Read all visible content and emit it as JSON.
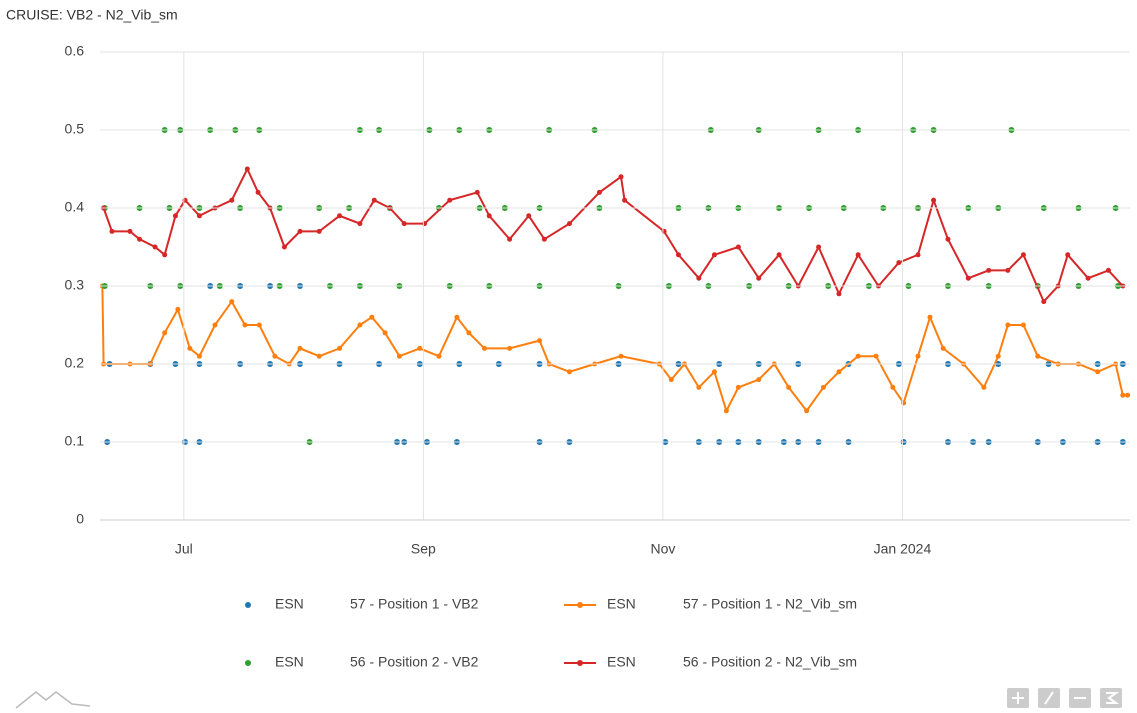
{
  "chart_data": {
    "type": "line",
    "title": "CRUISE: VB2 - N2_Vib_sm",
    "xlim": [
      6.3,
      14.9
    ],
    "xticks": [
      {
        "value": 7,
        "label": "Jul"
      },
      {
        "value": 9,
        "label": "Sep"
      },
      {
        "value": 11,
        "label": "Nov"
      },
      {
        "value": 13,
        "label": "Jan 2024"
      }
    ],
    "ylim": [
      0,
      0.6
    ],
    "yticks": [
      0,
      0.1,
      0.2,
      0.3,
      0.4,
      0.5,
      0.6
    ],
    "grid": true,
    "legend": "bottom",
    "series": [
      {
        "legend_prefix": "ESN",
        "name": "57 - Position 1 - VB2",
        "color": "#1f77b4",
        "mode": "markers",
        "x": [
          6.36,
          7.01,
          7.13,
          8.78,
          8.84,
          9.03,
          9.28,
          9.97,
          10.22,
          11.02,
          11.3,
          11.47,
          11.63,
          11.8,
          12.01,
          12.13,
          12.3,
          12.55,
          13.01,
          13.38,
          13.59,
          13.72,
          14.13,
          14.34,
          14.63,
          14.84,
          6.38,
          6.72,
          6.93,
          7.13,
          7.47,
          7.72,
          7.97,
          8.3,
          8.63,
          8.97,
          9.3,
          9.63,
          9.97,
          10.63,
          11.13,
          11.47,
          11.8,
          12.13,
          12.55,
          12.97,
          13.38,
          13.8,
          14.22,
          14.63,
          14.84,
          7.22,
          7.47,
          7.72,
          7.97
        ],
        "values": [
          0.1,
          0.1,
          0.1,
          0.1,
          0.1,
          0.1,
          0.1,
          0.1,
          0.1,
          0.1,
          0.1,
          0.1,
          0.1,
          0.1,
          0.1,
          0.1,
          0.1,
          0.1,
          0.1,
          0.1,
          0.1,
          0.1,
          0.1,
          0.1,
          0.1,
          0.1,
          0.2,
          0.2,
          0.2,
          0.2,
          0.2,
          0.2,
          0.2,
          0.2,
          0.2,
          0.2,
          0.2,
          0.2,
          0.2,
          0.2,
          0.2,
          0.2,
          0.2,
          0.2,
          0.2,
          0.2,
          0.2,
          0.2,
          0.2,
          0.2,
          0.2,
          0.3,
          0.3,
          0.3,
          0.3
        ]
      },
      {
        "legend_prefix": "ESN",
        "name": "57 - Position 1 - N2_Vib_sm",
        "color": "#ff7f0e",
        "mode": "lines+markers",
        "x": [
          6.32,
          6.33,
          6.55,
          6.72,
          6.84,
          6.95,
          7.05,
          7.13,
          7.26,
          7.4,
          7.51,
          7.63,
          7.76,
          7.88,
          7.97,
          8.13,
          8.3,
          8.47,
          8.57,
          8.68,
          8.8,
          8.97,
          9.13,
          9.28,
          9.38,
          9.51,
          9.72,
          9.97,
          10.05,
          10.22,
          10.43,
          10.65,
          10.97,
          11.07,
          11.18,
          11.3,
          11.43,
          11.53,
          11.63,
          11.8,
          11.93,
          12.05,
          12.2,
          12.34,
          12.47,
          12.63,
          12.78,
          12.92,
          13.01,
          13.13,
          13.23,
          13.34,
          13.51,
          13.68,
          13.8,
          13.88,
          14.01,
          14.13,
          14.3,
          14.47,
          14.63,
          14.78,
          14.84,
          14.88
        ],
        "values": [
          0.3,
          0.2,
          0.2,
          0.2,
          0.24,
          0.27,
          0.22,
          0.21,
          0.25,
          0.28,
          0.25,
          0.25,
          0.21,
          0.2,
          0.22,
          0.21,
          0.22,
          0.25,
          0.26,
          0.24,
          0.21,
          0.22,
          0.21,
          0.26,
          0.24,
          0.22,
          0.22,
          0.23,
          0.2,
          0.19,
          0.2,
          0.21,
          0.2,
          0.18,
          0.2,
          0.17,
          0.19,
          0.14,
          0.17,
          0.18,
          0.2,
          0.17,
          0.14,
          0.17,
          0.19,
          0.21,
          0.21,
          0.17,
          0.15,
          0.21,
          0.26,
          0.22,
          0.2,
          0.17,
          0.21,
          0.25,
          0.25,
          0.21,
          0.2,
          0.2,
          0.19,
          0.2,
          0.16,
          0.16
        ]
      },
      {
        "legend_prefix": "ESN",
        "name": "56 - Position 2 - VB2",
        "color": "#2ca02c",
        "mode": "markers",
        "x": [
          6.84,
          6.97,
          7.22,
          7.43,
          7.63,
          8.47,
          8.63,
          9.05,
          9.3,
          9.55,
          10.05,
          10.43,
          11.4,
          11.8,
          12.3,
          12.63,
          13.09,
          13.26,
          13.91,
          6.34,
          6.63,
          6.88,
          7.13,
          7.47,
          7.8,
          8.13,
          8.38,
          8.72,
          9.13,
          9.47,
          9.68,
          9.97,
          10.47,
          11.13,
          11.38,
          11.63,
          11.97,
          12.22,
          12.51,
          12.84,
          13.13,
          13.55,
          13.8,
          14.18,
          14.47,
          14.78,
          6.34,
          6.72,
          6.97,
          7.3,
          7.8,
          8.22,
          8.47,
          8.8,
          9.22,
          9.55,
          9.97,
          10.63,
          11.05,
          11.38,
          11.72,
          12.05,
          12.38,
          12.72,
          13.05,
          13.38,
          13.72,
          14.13,
          14.47,
          14.8,
          8.05
        ],
        "values": [
          0.5,
          0.5,
          0.5,
          0.5,
          0.5,
          0.5,
          0.5,
          0.5,
          0.5,
          0.5,
          0.5,
          0.5,
          0.5,
          0.5,
          0.5,
          0.5,
          0.5,
          0.5,
          0.5,
          0.4,
          0.4,
          0.4,
          0.4,
          0.4,
          0.4,
          0.4,
          0.4,
          0.4,
          0.4,
          0.4,
          0.4,
          0.4,
          0.4,
          0.4,
          0.4,
          0.4,
          0.4,
          0.4,
          0.4,
          0.4,
          0.4,
          0.4,
          0.4,
          0.4,
          0.4,
          0.4,
          0.3,
          0.3,
          0.3,
          0.3,
          0.3,
          0.3,
          0.3,
          0.3,
          0.3,
          0.3,
          0.3,
          0.3,
          0.3,
          0.3,
          0.3,
          0.3,
          0.3,
          0.3,
          0.3,
          0.3,
          0.3,
          0.3,
          0.3,
          0.3,
          0.1
        ]
      },
      {
        "legend_prefix": "ESN",
        "name": "56 - Position 2 - N2_Vib_sm",
        "color": "#d62728",
        "mode": "lines+markers",
        "x": [
          6.33,
          6.4,
          6.55,
          6.63,
          6.76,
          6.84,
          6.93,
          7.01,
          7.13,
          7.26,
          7.4,
          7.53,
          7.62,
          7.72,
          7.84,
          7.97,
          8.13,
          8.3,
          8.47,
          8.59,
          8.72,
          8.84,
          9.01,
          9.22,
          9.45,
          9.55,
          9.72,
          9.88,
          10.01,
          10.22,
          10.47,
          10.65,
          10.68,
          11.01,
          11.13,
          11.3,
          11.43,
          11.63,
          11.8,
          11.97,
          12.13,
          12.3,
          12.47,
          12.63,
          12.8,
          12.97,
          13.13,
          13.26,
          13.38,
          13.55,
          13.72,
          13.88,
          14.01,
          14.18,
          14.3,
          14.38,
          14.55,
          14.72,
          14.84
        ],
        "values": [
          0.4,
          0.37,
          0.37,
          0.36,
          0.35,
          0.34,
          0.39,
          0.41,
          0.39,
          0.4,
          0.41,
          0.45,
          0.42,
          0.4,
          0.35,
          0.37,
          0.37,
          0.39,
          0.38,
          0.41,
          0.4,
          0.38,
          0.38,
          0.41,
          0.42,
          0.39,
          0.36,
          0.39,
          0.36,
          0.38,
          0.42,
          0.44,
          0.41,
          0.37,
          0.34,
          0.31,
          0.34,
          0.35,
          0.31,
          0.34,
          0.3,
          0.35,
          0.29,
          0.34,
          0.3,
          0.33,
          0.34,
          0.41,
          0.36,
          0.31,
          0.32,
          0.32,
          0.34,
          0.28,
          0.3,
          0.34,
          0.31,
          0.32,
          0.3
        ]
      }
    ]
  }
}
